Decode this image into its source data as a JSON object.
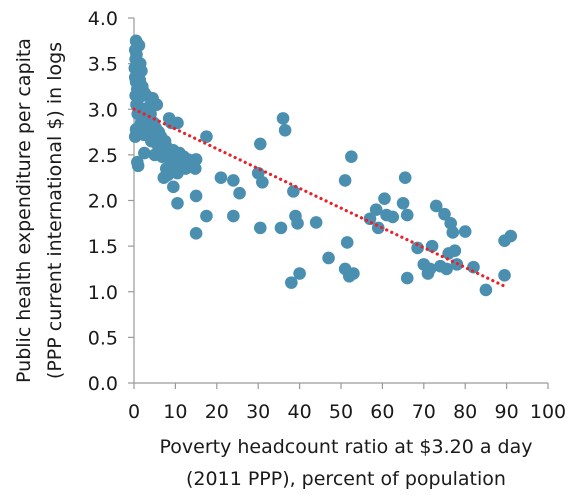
{
  "chart_data": {
    "type": "scatter",
    "xlabel_lines": [
      "Poverty headcount ratio at $3.20 a day",
      "(2011 PPP), percent of population"
    ],
    "ylabel_lines": [
      "Public health expenditure per capita",
      "(PPP current international $) in logs"
    ],
    "xlim": [
      0,
      100
    ],
    "ylim": [
      0,
      4.0
    ],
    "xticks": [
      0,
      10,
      20,
      30,
      40,
      50,
      60,
      70,
      80,
      90,
      100
    ],
    "yticks": [
      "0.0",
      "0.5",
      "1.0",
      "1.5",
      "2.0",
      "2.5",
      "3.0",
      "3.5",
      "4.0"
    ],
    "grid": false,
    "marker_color": "#4a8fb0",
    "trend_color": "#e8212a",
    "trendline": {
      "style": "dotted",
      "x": [
        0,
        90
      ],
      "y": [
        3.0,
        1.05
      ]
    },
    "points": [
      [
        0.5,
        3.75
      ],
      [
        0.8,
        3.72
      ],
      [
        1.2,
        3.7
      ],
      [
        0.3,
        3.65
      ],
      [
        0.6,
        3.6
      ],
      [
        0.4,
        3.55
      ],
      [
        0.9,
        3.52
      ],
      [
        1.5,
        3.5
      ],
      [
        0.2,
        3.45
      ],
      [
        0.7,
        3.4
      ],
      [
        1.0,
        3.38
      ],
      [
        1.8,
        3.42
      ],
      [
        0.3,
        3.35
      ],
      [
        0.5,
        3.3
      ],
      [
        1.4,
        3.32
      ],
      [
        2.0,
        3.25
      ],
      [
        0.8,
        3.22
      ],
      [
        1.6,
        3.2
      ],
      [
        2.5,
        3.18
      ],
      [
        0.4,
        3.15
      ],
      [
        1.1,
        3.12
      ],
      [
        3.0,
        3.15
      ],
      [
        4.5,
        3.12
      ],
      [
        5.5,
        3.05
      ],
      [
        0.6,
        3.05
      ],
      [
        1.3,
        3.02
      ],
      [
        2.2,
        3.0
      ],
      [
        3.5,
        3.02
      ],
      [
        0.9,
        2.95
      ],
      [
        2.8,
        2.92
      ],
      [
        4.0,
        2.95
      ],
      [
        1.7,
        2.85
      ],
      [
        3.2,
        2.82
      ],
      [
        4.8,
        2.85
      ],
      [
        5.2,
        2.8
      ],
      [
        0.5,
        2.78
      ],
      [
        1.2,
        2.75
      ],
      [
        2.4,
        2.72
      ],
      [
        3.8,
        2.7
      ],
      [
        6.0,
        2.75
      ],
      [
        0.3,
        2.7
      ],
      [
        4.2,
        2.65
      ],
      [
        6.5,
        2.7
      ],
      [
        7.5,
        2.65
      ],
      [
        8.5,
        2.9
      ],
      [
        9.0,
        2.85
      ],
      [
        10.5,
        2.85
      ],
      [
        5.8,
        2.6
      ],
      [
        7.0,
        2.6
      ],
      [
        8.0,
        2.58
      ],
      [
        9.5,
        2.55
      ],
      [
        10.0,
        2.5
      ],
      [
        11.0,
        2.52
      ],
      [
        2.5,
        2.52
      ],
      [
        5.0,
        2.5
      ],
      [
        6.8,
        2.48
      ],
      [
        8.8,
        2.45
      ],
      [
        12.0,
        2.48
      ],
      [
        13.0,
        2.45
      ],
      [
        15.0,
        2.45
      ],
      [
        11.5,
        2.4
      ],
      [
        9.2,
        2.38
      ],
      [
        0.8,
        2.42
      ],
      [
        1.0,
        2.38
      ],
      [
        7.8,
        2.35
      ],
      [
        8.2,
        2.28
      ],
      [
        7.2,
        2.25
      ],
      [
        10.5,
        2.3
      ],
      [
        12.5,
        2.35
      ],
      [
        14.8,
        2.35
      ],
      [
        17.5,
        2.7
      ],
      [
        9.5,
        2.15
      ],
      [
        10.5,
        1.97
      ],
      [
        15.0,
        2.05
      ],
      [
        17.5,
        1.83
      ],
      [
        15.0,
        1.64
      ],
      [
        21.0,
        2.25
      ],
      [
        24.0,
        2.22
      ],
      [
        25.5,
        2.08
      ],
      [
        24.0,
        1.83
      ],
      [
        30.0,
        2.3
      ],
      [
        30.5,
        2.62
      ],
      [
        31.0,
        2.2
      ],
      [
        30.5,
        1.7
      ],
      [
        36.0,
        2.9
      ],
      [
        36.5,
        2.77
      ],
      [
        35.5,
        1.7
      ],
      [
        38.5,
        2.1
      ],
      [
        39.0,
        1.83
      ],
      [
        38.0,
        1.1
      ],
      [
        39.5,
        1.75
      ],
      [
        40.0,
        1.2
      ],
      [
        44.0,
        1.76
      ],
      [
        47.0,
        1.37
      ],
      [
        51.0,
        2.22
      ],
      [
        52.5,
        2.48
      ],
      [
        51.5,
        1.54
      ],
      [
        51.0,
        1.25
      ],
      [
        52.0,
        1.17
      ],
      [
        53.0,
        1.2
      ],
      [
        57.0,
        1.8
      ],
      [
        58.5,
        1.9
      ],
      [
        59.0,
        1.7
      ],
      [
        60.5,
        2.02
      ],
      [
        61.0,
        1.84
      ],
      [
        62.5,
        1.82
      ],
      [
        65.0,
        1.97
      ],
      [
        65.5,
        2.25
      ],
      [
        66.0,
        1.84
      ],
      [
        66.0,
        1.15
      ],
      [
        68.5,
        1.48
      ],
      [
        70.0,
        1.3
      ],
      [
        71.0,
        1.2
      ],
      [
        71.5,
        1.25
      ],
      [
        72.0,
        1.5
      ],
      [
        73.0,
        1.94
      ],
      [
        74.0,
        1.28
      ],
      [
        75.0,
        1.85
      ],
      [
        75.5,
        1.25
      ],
      [
        76.0,
        1.42
      ],
      [
        76.5,
        1.75
      ],
      [
        77.0,
        1.65
      ],
      [
        77.5,
        1.45
      ],
      [
        78.0,
        1.3
      ],
      [
        80.0,
        1.66
      ],
      [
        82.0,
        1.27
      ],
      [
        85.0,
        1.02
      ],
      [
        89.5,
        1.18
      ],
      [
        89.5,
        1.56
      ],
      [
        91.0,
        1.61
      ]
    ]
  }
}
